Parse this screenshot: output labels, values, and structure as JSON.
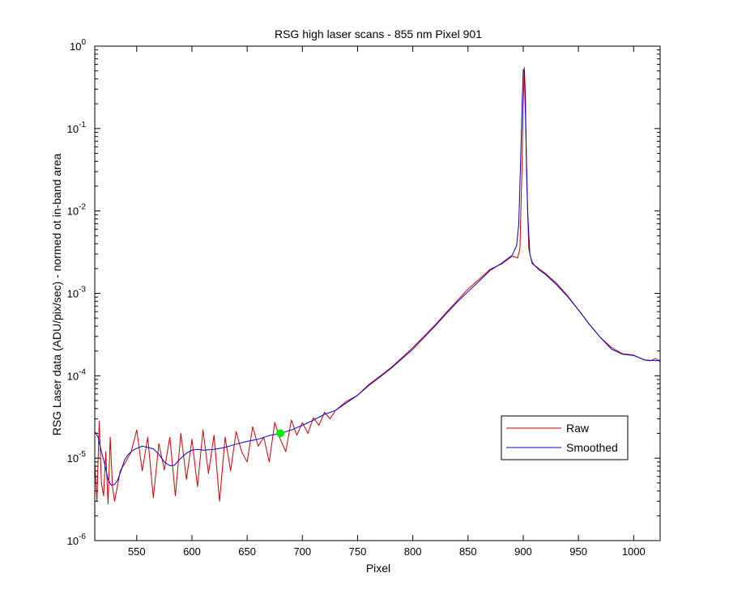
{
  "chart_data": {
    "type": "line",
    "title": "RSG high laser scans  - 855 nm    Pixel 901",
    "xlabel": "Pixel",
    "ylabel": "RSG Laser data (ADU/pix/sec) - normed ot in-band area",
    "xlim": [
      512,
      1024
    ],
    "ylim": [
      1e-06,
      1
    ],
    "yscale": "log",
    "grid": false,
    "legend_position": "lower-right",
    "x_ticks": [
      550,
      600,
      650,
      700,
      750,
      800,
      850,
      900,
      950,
      1000
    ],
    "x_tick_labels": [
      "550",
      "600",
      "650",
      "700",
      "750",
      "800",
      "850",
      "900",
      "950",
      "1000"
    ],
    "y_ticks": [
      {
        "value": 1,
        "base": "10",
        "exp": "0"
      },
      {
        "value": 0.1,
        "base": "10",
        "exp": "-1"
      },
      {
        "value": 0.01,
        "base": "10",
        "exp": "-2"
      },
      {
        "value": 0.001,
        "base": "10",
        "exp": "-3"
      },
      {
        "value": 0.0001,
        "base": "10",
        "exp": "-4"
      },
      {
        "value": 1e-05,
        "base": "10",
        "exp": "-5"
      },
      {
        "value": 1e-06,
        "base": "10",
        "exp": "-6"
      }
    ],
    "series": [
      {
        "name": "Raw",
        "color": "#cc0000",
        "x": [
          512,
          514,
          516,
          518,
          520,
          522,
          524,
          526,
          528,
          530,
          535,
          540,
          545,
          550,
          555,
          560,
          565,
          570,
          575,
          580,
          585,
          590,
          595,
          600,
          605,
          610,
          615,
          620,
          625,
          630,
          635,
          640,
          645,
          650,
          655,
          660,
          665,
          670,
          675,
          680,
          685,
          690,
          695,
          700,
          705,
          710,
          715,
          720,
          725,
          730,
          740,
          750,
          760,
          770,
          780,
          790,
          800,
          810,
          820,
          830,
          840,
          850,
          860,
          870,
          880,
          890,
          895,
          897,
          899,
          900,
          901,
          902,
          903,
          905,
          908,
          912,
          920,
          930,
          940,
          950,
          960,
          970,
          980,
          990,
          1000,
          1010,
          1015,
          1020,
          1024
        ],
        "y": [
          9e-06,
          3e-06,
          2.8e-05,
          5e-06,
          3.5e-06,
          1.2e-05,
          2.8e-06,
          1.8e-05,
          4.5e-06,
          3e-06,
          7e-06,
          9e-06,
          1.2e-05,
          2.2e-05,
          7e-06,
          1.8e-05,
          3.3e-06,
          1.5e-05,
          7.2e-06,
          1.8e-05,
          3.5e-06,
          2e-05,
          5.5e-06,
          1.7e-05,
          4.5e-06,
          2.2e-05,
          6.5e-06,
          1.9e-05,
          3e-06,
          1.8e-05,
          7e-06,
          2.1e-05,
          1.2e-05,
          9e-06,
          2.4e-05,
          1.4e-05,
          1.8e-05,
          9e-06,
          2.7e-05,
          1.7e-05,
          1.2e-05,
          2.9e-05,
          1.9e-05,
          2.7e-05,
          2e-05,
          3.1e-05,
          2.5e-05,
          3.6e-05,
          3e-05,
          3.8e-05,
          4.9e-05,
          5.8e-05,
          7.8e-05,
          9.8e-05,
          0.000125,
          0.000165,
          0.00022,
          0.0003,
          0.00041,
          0.00058,
          0.00081,
          0.00113,
          0.00148,
          0.00196,
          0.00225,
          0.00282,
          0.0027,
          0.0035,
          0.04,
          0.2,
          0.55,
          0.25,
          0.03,
          0.0035,
          0.0023,
          0.0021,
          0.00175,
          0.00133,
          0.00094,
          0.00063,
          0.00042,
          0.00029,
          0.00022,
          0.000185,
          0.000178,
          0.000155,
          0.000152,
          0.000162,
          0.000148
        ]
      },
      {
        "name": "Smoothed",
        "color": "#0000cc",
        "x": [
          512,
          515,
          518,
          521,
          524,
          527,
          530,
          533,
          536,
          539,
          542,
          545,
          548,
          551,
          555,
          560,
          565,
          570,
          575,
          580,
          584,
          590,
          595,
          600,
          605,
          610,
          620,
          630,
          640,
          650,
          660,
          670,
          680,
          690,
          700,
          710,
          720,
          730,
          740,
          750,
          760,
          770,
          780,
          790,
          800,
          810,
          820,
          830,
          840,
          850,
          860,
          870,
          880,
          890,
          894,
          896,
          898,
          899,
          900,
          901,
          902,
          903,
          904,
          906,
          908,
          910,
          915,
          920,
          930,
          940,
          950,
          960,
          970,
          980,
          990,
          1000,
          1010,
          1020,
          1024
        ],
        "y": [
          2.1e-05,
          1.8e-05,
          1.2e-05,
          8.5e-06,
          5.5e-06,
          4.7e-06,
          4.8e-06,
          5.5e-06,
          7.2e-06,
          9.5e-06,
          1.1e-05,
          1.2e-05,
          1.28e-05,
          1.33e-05,
          1.4e-05,
          1.35e-05,
          1.3e-05,
          1.12e-05,
          9e-06,
          8.1e-06,
          8.2e-06,
          1e-05,
          1.15e-05,
          1.25e-05,
          1.28e-05,
          1.25e-05,
          1.28e-05,
          1.35e-05,
          1.48e-05,
          1.6e-05,
          1.7e-05,
          1.88e-05,
          2e-05,
          2.2e-05,
          2.5e-05,
          2.9e-05,
          3.4e-05,
          3.8e-05,
          4.7e-05,
          5.8e-05,
          7.6e-05,
          9.6e-05,
          0.000122,
          0.00016,
          0.00021,
          0.00029,
          0.0004,
          0.00056,
          0.00078,
          0.00105,
          0.0014,
          0.0019,
          0.0023,
          0.0029,
          0.0038,
          0.007,
          0.06,
          0.2,
          0.52,
          0.5,
          0.15,
          0.04,
          0.01,
          0.003,
          0.0024,
          0.0022,
          0.0019,
          0.0017,
          0.00128,
          0.00092,
          0.00063,
          0.00042,
          0.00029,
          0.00021,
          0.000182,
          0.000176,
          0.000156,
          0.000152,
          0.000155
        ]
      }
    ],
    "marker": {
      "x": 680,
      "y": 2e-05,
      "color": "#00ee00"
    }
  }
}
